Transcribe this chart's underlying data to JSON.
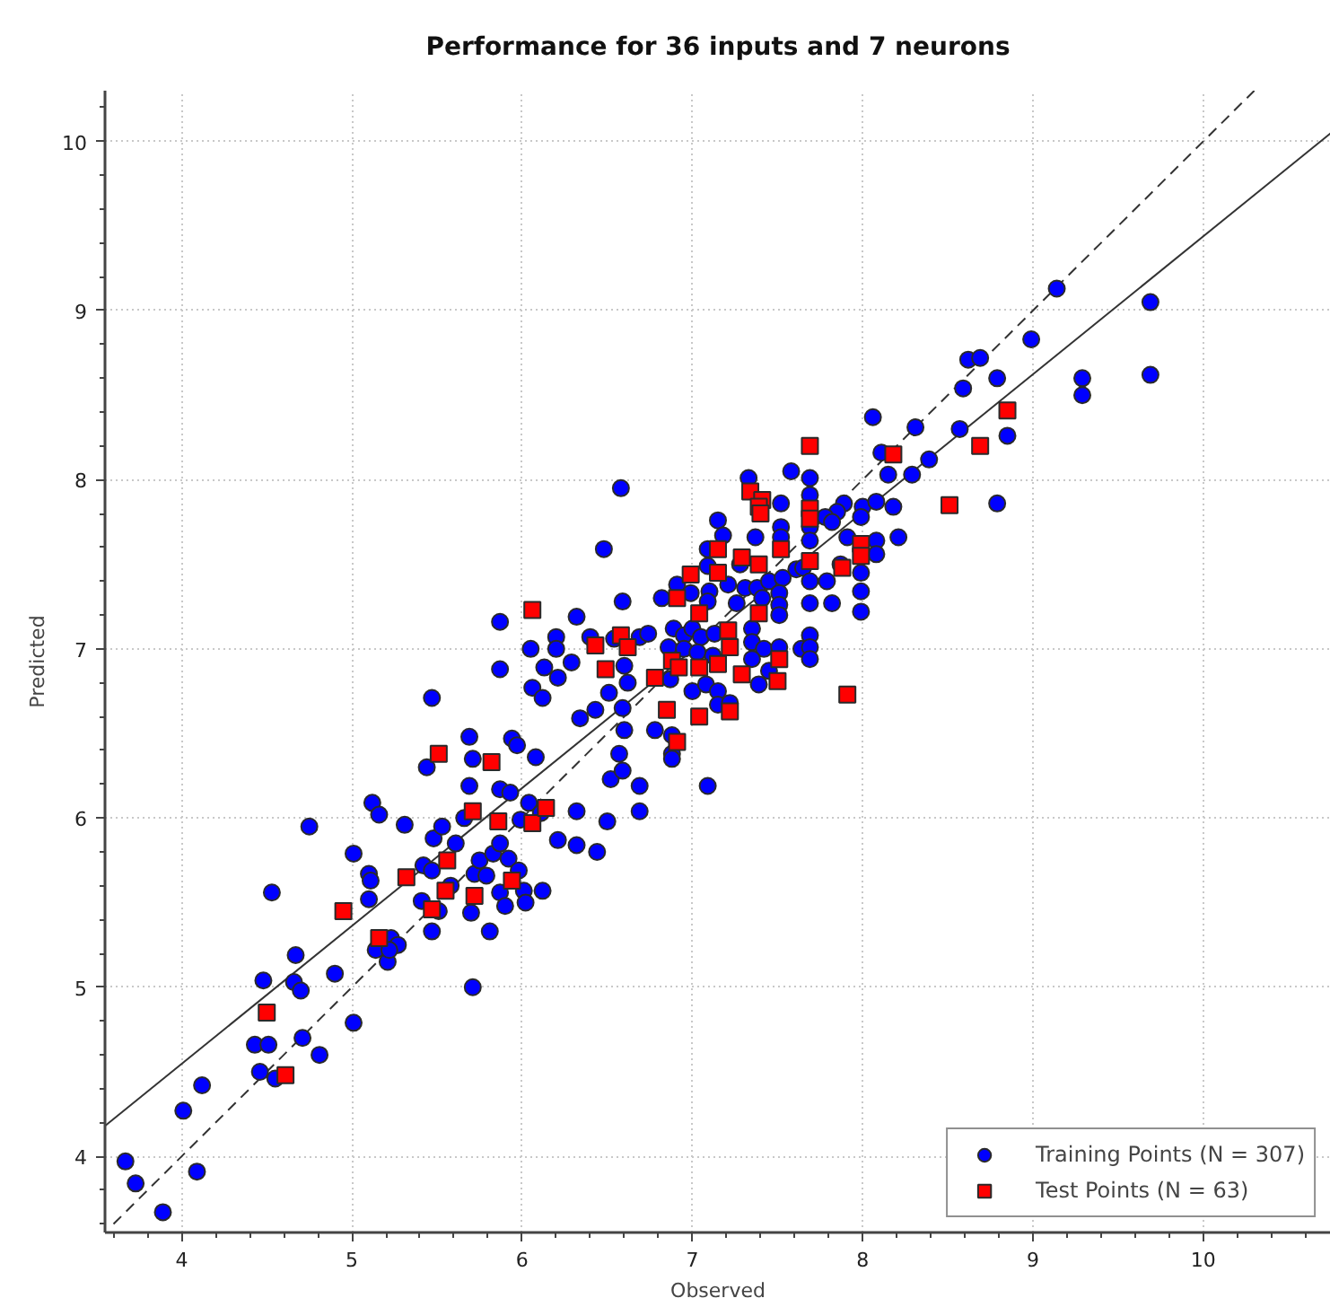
{
  "chart_data": {
    "type": "scatter",
    "title": "Performance for 36 inputs and 7 neurons",
    "xlabel": "Observed",
    "ylabel": "Predicted",
    "xlim": [
      3.55,
      10.75
    ],
    "ylim": [
      3.55,
      10.3
    ],
    "xticks": [
      4,
      5,
      6,
      7,
      8,
      9,
      10
    ],
    "yticks": [
      4,
      5,
      6,
      7,
      8,
      9,
      10
    ],
    "grid": true,
    "legend": "bottom right",
    "series": [
      {
        "type": "line",
        "color": "#333333",
        "line_style": "solid",
        "marker": "none",
        "x": [
          3.55,
          10.75
        ],
        "values": [
          4.18,
          10.05
        ]
      },
      {
        "type": "line",
        "color": "#333333",
        "line_style": "dashed",
        "marker": "none",
        "x": [
          3.6,
          10.3
        ],
        "values": [
          3.6,
          10.3
        ]
      },
      {
        "name": "Training Points (N = 307)",
        "marker": "circle",
        "color": "#0000ff",
        "x": [
          3.67,
          3.73,
          3.89,
          4.01,
          4.09,
          4.12,
          4.48,
          4.43,
          4.51,
          4.46,
          4.55,
          4.53,
          4.67,
          4.66,
          4.7,
          4.71,
          4.81,
          4.75,
          4.9,
          5.01,
          5.01,
          5.1,
          5.11,
          5.1,
          5.12,
          5.16,
          5.31,
          5.14,
          5.21,
          5.23,
          5.27,
          5.22,
          5.47,
          5.44,
          5.41,
          5.42,
          5.47,
          5.47,
          5.51,
          5.48,
          5.53,
          5.58,
          5.61,
          5.66,
          5.69,
          5.71,
          5.69,
          5.7,
          5.72,
          5.71,
          5.75,
          5.79,
          5.81,
          5.83,
          5.87,
          5.87,
          5.87,
          5.9,
          5.92,
          5.93,
          5.94,
          5.97,
          5.98,
          5.99,
          6.01,
          6.02,
          6.04,
          6.08,
          6.06,
          6.12,
          6.12,
          6.11,
          6.21,
          6.21,
          6.32,
          6.32,
          6.34,
          6.44,
          6.43,
          6.5,
          6.51,
          6.52,
          6.57,
          6.59,
          6.6,
          6.59,
          6.62,
          6.69,
          6.69,
          6.78,
          8.06,
          8.11,
          8.15,
          7.58,
          7.33,
          7.69,
          7.69,
          7.52,
          7.89,
          7.85,
          8.0,
          8.08,
          7.99,
          7.78,
          7.82,
          7.15,
          7.18,
          7.37,
          7.52,
          7.52,
          7.69,
          7.69,
          7.91,
          8.08,
          7.09,
          6.48,
          7.28,
          7.09,
          7.21,
          7.31,
          7.38,
          7.45,
          7.53,
          7.61,
          7.65,
          7.69,
          7.79,
          7.87,
          7.99,
          7.99,
          7.99,
          7.82,
          7.69,
          7.51,
          7.51,
          7.51,
          7.41,
          7.26,
          7.1,
          7.09,
          6.99,
          6.91,
          6.82,
          6.59,
          6.32,
          5.87,
          6.2,
          6.4,
          6.54,
          6.69,
          6.74,
          6.89,
          6.95,
          7.0,
          7.05,
          7.13,
          6.86,
          6.95,
          7.03,
          7.12,
          7.35,
          7.35,
          7.42,
          7.51,
          7.64,
          7.69,
          7.69,
          7.69,
          7.45,
          7.35,
          6.87,
          7.0,
          7.08,
          7.15,
          7.15,
          7.22,
          7.39,
          6.05,
          6.2,
          6.13,
          6.29,
          5.87,
          6.6,
          6.88,
          6.88,
          6.88,
          7.09,
          6.58,
          9.14,
          9.69,
          9.69,
          9.29,
          9.29,
          8.99,
          8.62,
          8.69,
          8.59,
          8.79,
          8.57,
          8.85,
          8.31,
          8.39,
          8.29,
          8.18,
          8.21,
          8.08,
          8.79
        ],
        "values": [
          3.97,
          3.84,
          3.67,
          4.27,
          3.91,
          4.42,
          5.04,
          4.66,
          4.66,
          4.5,
          4.46,
          5.56,
          5.19,
          5.03,
          4.98,
          4.7,
          4.6,
          5.95,
          5.08,
          4.79,
          5.79,
          5.67,
          5.63,
          5.52,
          6.09,
          6.02,
          5.96,
          5.22,
          5.15,
          5.29,
          5.25,
          5.22,
          6.71,
          6.3,
          5.51,
          5.72,
          5.69,
          5.33,
          5.45,
          5.88,
          5.95,
          5.6,
          5.85,
          6.0,
          6.48,
          6.35,
          6.19,
          5.44,
          5.67,
          5.0,
          5.75,
          5.66,
          5.33,
          5.79,
          6.17,
          5.85,
          5.56,
          5.48,
          5.76,
          6.15,
          6.47,
          6.43,
          5.69,
          5.99,
          5.57,
          5.5,
          6.09,
          6.36,
          6.77,
          6.71,
          5.57,
          6.03,
          5.87,
          6.83,
          6.04,
          5.84,
          6.59,
          5.8,
          6.64,
          5.98,
          6.74,
          6.23,
          6.38,
          6.28,
          6.52,
          6.65,
          6.8,
          6.19,
          6.04,
          6.52,
          8.37,
          8.16,
          8.03,
          8.05,
          8.01,
          8.01,
          7.91,
          7.86,
          7.86,
          7.81,
          7.84,
          7.87,
          7.78,
          7.78,
          7.75,
          7.76,
          7.67,
          7.66,
          7.72,
          7.66,
          7.72,
          7.64,
          7.66,
          7.64,
          7.59,
          7.59,
          7.5,
          7.49,
          7.38,
          7.36,
          7.36,
          7.4,
          7.42,
          7.47,
          7.48,
          7.4,
          7.4,
          7.5,
          7.45,
          7.34,
          7.22,
          7.27,
          7.27,
          7.33,
          7.26,
          7.2,
          7.3,
          7.27,
          7.34,
          7.28,
          7.33,
          7.38,
          7.3,
          7.28,
          7.19,
          7.16,
          7.07,
          7.07,
          7.06,
          7.07,
          7.09,
          7.12,
          7.08,
          7.12,
          7.07,
          7.09,
          7.01,
          7.0,
          6.98,
          6.96,
          7.12,
          7.04,
          7.0,
          7.01,
          7.0,
          7.08,
          7.01,
          6.94,
          6.87,
          6.94,
          6.82,
          6.75,
          6.79,
          6.75,
          6.67,
          6.68,
          6.79,
          7.0,
          7.0,
          6.89,
          6.92,
          6.88,
          6.9,
          6.49,
          6.38,
          6.35,
          6.19,
          7.95,
          9.13,
          9.05,
          8.62,
          8.6,
          8.5,
          8.83,
          8.71,
          8.72,
          8.54,
          8.6,
          8.3,
          8.26,
          8.31,
          8.12,
          8.03,
          7.84,
          7.66,
          7.56,
          7.86
        ]
      },
      {
        "name": "Test Points (N = 63)",
        "marker": "square",
        "color": "#ff0000",
        "x": [
          5.51,
          5.82,
          5.71,
          5.86,
          6.06,
          6.14,
          4.95,
          5.32,
          5.56,
          5.55,
          5.72,
          5.94,
          5.47,
          5.16,
          4.5,
          4.61,
          6.78,
          7.69,
          7.34,
          7.41,
          7.39,
          7.4,
          7.69,
          7.69,
          7.52,
          7.15,
          7.29,
          7.39,
          7.15,
          6.99,
          6.91,
          6.06,
          7.69,
          7.88,
          7.99,
          7.99,
          7.39,
          7.04,
          7.21,
          7.22,
          6.58,
          6.43,
          6.62,
          6.49,
          6.88,
          6.92,
          7.04,
          7.15,
          7.29,
          7.51,
          7.5,
          7.91,
          6.85,
          7.04,
          7.22,
          6.91,
          8.85,
          8.69,
          8.18,
          8.51
        ],
        "values": [
          6.38,
          6.33,
          6.04,
          5.98,
          5.97,
          6.06,
          5.45,
          5.65,
          5.75,
          5.57,
          5.54,
          5.63,
          5.46,
          5.29,
          4.85,
          4.48,
          6.83,
          8.2,
          7.93,
          7.88,
          7.84,
          7.8,
          7.83,
          7.77,
          7.59,
          7.59,
          7.54,
          7.5,
          7.45,
          7.44,
          7.3,
          7.23,
          7.52,
          7.48,
          7.62,
          7.55,
          7.21,
          7.21,
          7.11,
          7.01,
          7.08,
          7.02,
          7.01,
          6.88,
          6.93,
          6.89,
          6.89,
          6.91,
          6.85,
          6.94,
          6.81,
          6.73,
          6.64,
          6.6,
          6.63,
          6.45,
          8.41,
          8.2,
          8.15,
          7.85
        ]
      }
    ]
  }
}
